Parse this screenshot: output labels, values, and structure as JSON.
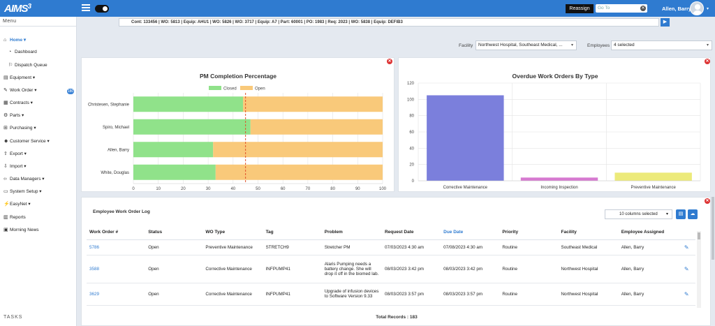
{
  "app": {
    "logo": "AIMS",
    "logo_sup": "3"
  },
  "topbar": {
    "reassign_label": "Reassign",
    "goto_placeholder": "Go To",
    "user_name": "Allen, Barry"
  },
  "sidebar": {
    "menu_label": "Menu",
    "items": [
      {
        "label": "Home",
        "icon": "home-icon",
        "glyph": "⌂"
      },
      {
        "label": "Dashboard",
        "icon": "dashboard-icon",
        "glyph": "◔"
      },
      {
        "label": "Dispatch Queue",
        "icon": "runner-icon",
        "glyph": "⚐"
      },
      {
        "label": "Equipment",
        "icon": "equipment-icon",
        "glyph": "▤"
      },
      {
        "label": "Work Order",
        "icon": "wrench-icon",
        "glyph": "✎"
      },
      {
        "label": "Contracts",
        "icon": "contracts-icon",
        "glyph": "▦"
      },
      {
        "label": "Parts",
        "icon": "gears-icon",
        "glyph": "⚙"
      },
      {
        "label": "Purchasing",
        "icon": "cart-icon",
        "glyph": "⊞"
      },
      {
        "label": "Customer Service",
        "icon": "users-icon",
        "glyph": "☻"
      },
      {
        "label": "Export",
        "icon": "export-icon",
        "glyph": "⇪"
      },
      {
        "label": "Import",
        "icon": "import-icon",
        "glyph": "⇩"
      },
      {
        "label": "Data Managers",
        "icon": "code-icon",
        "glyph": "‹›"
      },
      {
        "label": "System Setup",
        "icon": "setup-icon",
        "glyph": "▭"
      },
      {
        "label": "EasyNet",
        "icon": "easynet-icon",
        "glyph": "⚡"
      },
      {
        "label": "Reports",
        "icon": "reports-icon",
        "glyph": "▥"
      },
      {
        "label": "Morning News",
        "icon": "calendar-icon",
        "glyph": "▣"
      }
    ],
    "work_order_badge": "180",
    "tasks_label": "TASKS"
  },
  "breadcrumb": "Cont: 133456 | WO: 5813 | Equip: AHU1 | WO: 5826 | WO: 3717 | Equip: A7 | Part: 60001 | PO: 1983 | Req: 2023 | WO: 5838 | Equip: DEFIB3",
  "filters": {
    "facility_label": "Facility",
    "facility_value": "Northwest Hospital, Southeast Medical, ...",
    "employees_label": "Employees",
    "employees_value": "4 selected"
  },
  "colors": {
    "primary": "#2f7bd0",
    "closed": "#90e28a",
    "open": "#f9c97a",
    "bar_blue": "#7b7fdc",
    "bar_pink": "#d67ad0",
    "bar_yellow": "#ecea7a"
  },
  "chart_data": [
    {
      "type": "bar",
      "orientation": "horizontal",
      "stacked": true,
      "title": "PM Completion Percentage",
      "categories": [
        "Christesen, Stephanie",
        "Spiro, Michael",
        "Allen, Barry",
        "White, Douglas"
      ],
      "series": [
        {
          "name": "Closed",
          "values": [
            44,
            47,
            32,
            33
          ]
        },
        {
          "name": "Open",
          "values": [
            56,
            53,
            68,
            67
          ]
        }
      ],
      "xlim": [
        0,
        100
      ],
      "xticks": [
        "0",
        "10",
        "20",
        "30",
        "40",
        "50",
        "60",
        "70",
        "80",
        "90",
        "100"
      ],
      "reference_line": 45,
      "legend": "top",
      "grid": true
    },
    {
      "type": "bar",
      "title": "Overdue Work Orders By Type",
      "categories": [
        "Corrective Maintenance",
        "Incoming Inspection",
        "Preventive Maintenance"
      ],
      "values": [
        105,
        4,
        10
      ],
      "ylim": [
        0,
        120
      ],
      "yticks": [
        "0",
        "20",
        "40",
        "60",
        "80",
        "100",
        "120"
      ],
      "grid": true
    }
  ],
  "log": {
    "title": "Employee Work Order Log",
    "columns_selected": "10 columns selected",
    "headers": [
      "Work Order #",
      "Status",
      "WO Type",
      "Tag",
      "Problem",
      "Request Date",
      "Due Date",
      "Priority",
      "Facility",
      "Employee Assigned"
    ],
    "rows": [
      [
        "5786",
        "Open",
        "Preventive Maintenance",
        "STRETCH9",
        "Stretcher PM",
        "07/03/2023 4:30 am",
        "07/08/2023 4:30 am",
        "Routine",
        "Southeast Medical",
        "Allen, Barry"
      ],
      [
        "3588",
        "Open",
        "Corrective Maintenance",
        "INFPUMP41",
        "Alaris Pumping needs a battery change. She will drop it off in the biomed lab.",
        "08/03/2023 3:42 pm",
        "08/03/2023 3:42 pm",
        "Routine",
        "Northwest Hospital",
        "Allen, Barry"
      ],
      [
        "3629",
        "Open",
        "Corrective Maintenance",
        "INFPUMP41",
        "Upgrade of infusion devices to Software Version 9.33",
        "08/03/2023 3:57 pm",
        "08/03/2023 3:57 pm",
        "Routine",
        "Northwest Hospital",
        "Allen, Barry"
      ]
    ],
    "total_records_label": "Total Records :",
    "total_records": "183"
  }
}
